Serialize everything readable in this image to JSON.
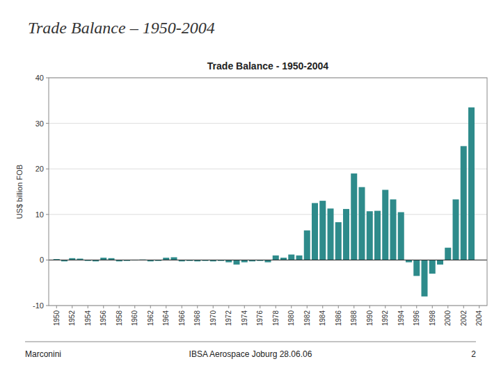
{
  "page_title": "Trade Balance – 1950-2004",
  "footer_left": "Marconini",
  "footer_center": "IBSA Aerospace Joburg 28.06.06",
  "footer_right": "2",
  "chart_data": {
    "type": "bar",
    "title": "Trade Balance - 1950-2004",
    "ylabel": "US$ billion  FOB",
    "color": "#2E8B8B",
    "x": [
      1950,
      1951,
      1952,
      1953,
      1954,
      1955,
      1956,
      1957,
      1958,
      1959,
      1960,
      1961,
      1962,
      1963,
      1964,
      1965,
      1966,
      1967,
      1968,
      1969,
      1970,
      1971,
      1972,
      1973,
      1974,
      1975,
      1976,
      1977,
      1978,
      1979,
      1980,
      1981,
      1982,
      1983,
      1984,
      1985,
      1986,
      1987,
      1988,
      1989,
      1990,
      1991,
      1992,
      1993,
      1994,
      1995,
      1996,
      1997,
      1998,
      1999,
      2000,
      2001,
      2002,
      2003,
      2004
    ],
    "values": [
      0.2,
      -0.3,
      0.4,
      0.3,
      -0.2,
      -0.3,
      0.5,
      0.4,
      -0.3,
      -0.2,
      -0.1,
      0.1,
      -0.3,
      -0.2,
      0.5,
      0.6,
      -0.3,
      -0.2,
      -0.3,
      -0.2,
      -0.3,
      -0.2,
      -0.5,
      -1.0,
      -0.5,
      -0.3,
      -0.2,
      -0.5,
      1.0,
      0.5,
      1.2,
      1.0,
      6.5,
      12.5,
      13.0,
      11.3,
      8.3,
      11.2,
      19.0,
      16.0,
      10.7,
      10.8,
      15.4,
      13.3,
      10.5,
      -0.5,
      -3.5,
      -8.0,
      -3.0,
      -1.0,
      2.7,
      13.3,
      25.0,
      33.5,
      0.0
    ],
    "xlim": [
      1949,
      2005
    ],
    "xticks": [
      1950,
      1952,
      1954,
      1956,
      1958,
      1960,
      1962,
      1964,
      1966,
      1968,
      1970,
      1972,
      1974,
      1976,
      1978,
      1980,
      1982,
      1984,
      1986,
      1988,
      1990,
      1992,
      1994,
      1996,
      1998,
      2000,
      2002,
      2004
    ],
    "ylim": [
      -10,
      40
    ],
    "yticks": [
      -10,
      0,
      10,
      20,
      30,
      40
    ],
    "grid": true
  }
}
